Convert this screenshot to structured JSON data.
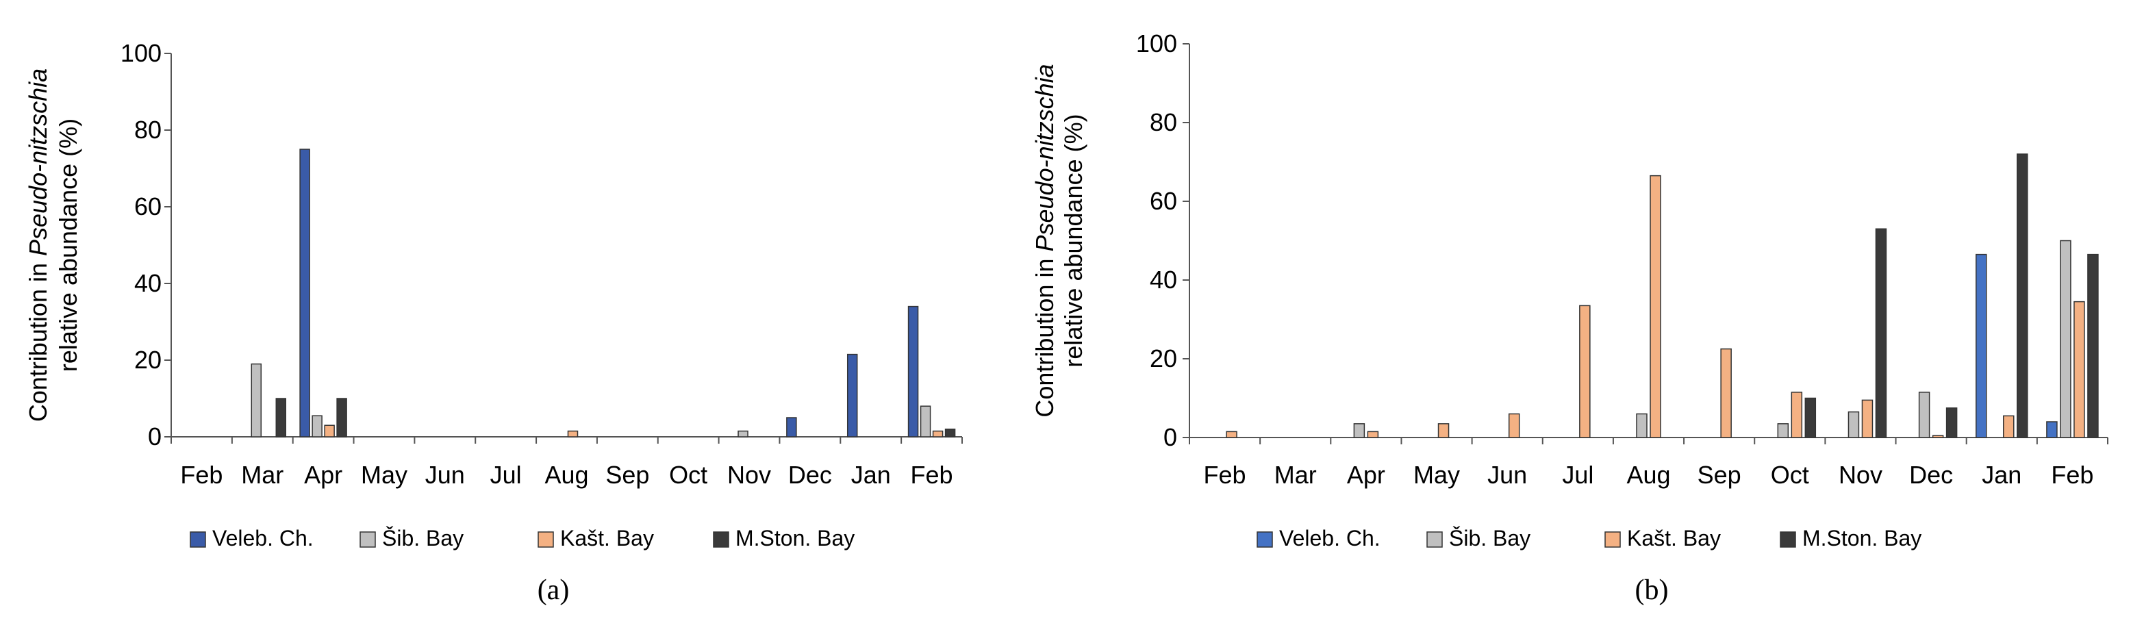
{
  "chart_data": [
    {
      "type": "bar",
      "panel_label": "(a)",
      "ylabel_prefix": "Contribution in ",
      "ylabel_genus": "Pseudo-nitzschia",
      "ylabel_line2": "relative abundance (%)",
      "ylim": [
        0,
        100
      ],
      "yticks": [
        "0",
        "20",
        "40",
        "60",
        "80",
        "100"
      ],
      "categories": [
        "Feb",
        "Mar",
        "Apr",
        "May",
        "Jun",
        "Jul",
        "Aug",
        "Sep",
        "Oct",
        "Nov",
        "Dec",
        "Jan",
        "Feb"
      ],
      "legend_position": "bottom",
      "series": [
        {
          "name": "Veleb. Ch.",
          "color": "#3a5ba8",
          "values": [
            0,
            0,
            75,
            0,
            0,
            0,
            0,
            0,
            0,
            0,
            5,
            21.5,
            34
          ]
        },
        {
          "name": "Šib. Bay",
          "color": "#c0c0c0",
          "values": [
            0,
            19,
            5.5,
            0,
            0,
            0,
            0,
            0,
            0,
            1.5,
            0,
            0,
            8
          ]
        },
        {
          "name": "Kašt. Bay",
          "color": "#f4b183",
          "values": [
            0,
            0,
            3,
            0,
            0,
            0,
            1.5,
            0,
            0,
            0,
            0,
            0,
            1.5
          ]
        },
        {
          "name": "M.Ston. Bay",
          "color": "#3a3a3a",
          "values": [
            0,
            10,
            10,
            0,
            0,
            0,
            0,
            0,
            0,
            0,
            0,
            0,
            2
          ]
        }
      ]
    },
    {
      "type": "bar",
      "panel_label": "(b)",
      "ylabel_prefix": "Contribution in ",
      "ylabel_genus": "Pseudo-nitzschia",
      "ylabel_line2": "relative abundance (%)",
      "ylim": [
        0,
        100
      ],
      "yticks": [
        "0",
        "20",
        "40",
        "60",
        "80",
        "100"
      ],
      "categories": [
        "Feb",
        "Mar",
        "Apr",
        "May",
        "Jun",
        "Jul",
        "Aug",
        "Sep",
        "Oct",
        "Nov",
        "Dec",
        "Jan",
        "Feb"
      ],
      "legend_position": "bottom",
      "series": [
        {
          "name": "Veleb. Ch.",
          "color": "#4472c4",
          "values": [
            0,
            0,
            0,
            0,
            0,
            0,
            0,
            0,
            0,
            0,
            0,
            46.5,
            4
          ]
        },
        {
          "name": "Šib. Bay",
          "color": "#c0c0c0",
          "values": [
            0,
            0,
            3.5,
            0,
            0,
            0,
            6,
            0,
            3.5,
            6.5,
            11.5,
            0,
            50
          ]
        },
        {
          "name": "Kašt. Bay",
          "color": "#f4b183",
          "values": [
            1.5,
            0,
            1.5,
            3.5,
            6,
            33.5,
            66.5,
            22.5,
            11.5,
            9.5,
            0.5,
            5.5,
            34.5
          ]
        },
        {
          "name": "M.Ston. Bay",
          "color": "#3a3a3a",
          "values": [
            0,
            0,
            0,
            0,
            0,
            0,
            0,
            0,
            10,
            53,
            7.5,
            72,
            46.5
          ]
        }
      ]
    }
  ]
}
